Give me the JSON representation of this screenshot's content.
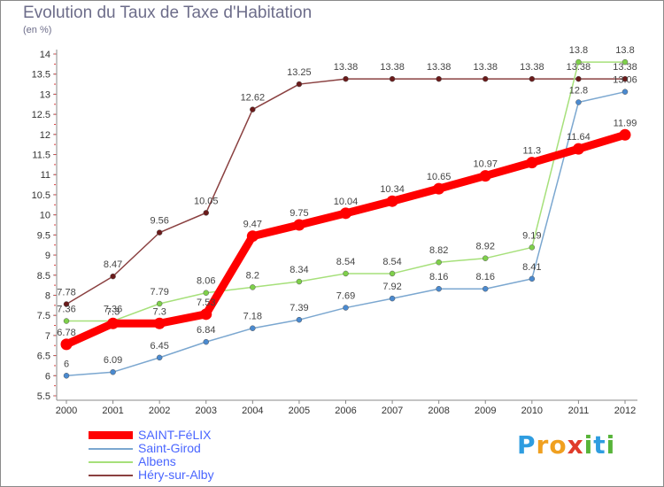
{
  "header": {
    "title": "Evolution du Taux de Taxe d'Habitation",
    "subtitle": "(en %)"
  },
  "brand": {
    "letters": [
      "P",
      "r",
      "o",
      "x",
      "i",
      "t",
      "i"
    ],
    "colors": [
      "#2f9de0",
      "#f0a020",
      "#f0a020",
      "#e03b2a",
      "#58b43a",
      "#2f9de0",
      "#58b43a"
    ]
  },
  "chart_data": {
    "type": "line",
    "title": "Evolution du Taux de Taxe d'Habitation",
    "subtitle": "(en %)",
    "x": [
      "2000",
      "2001",
      "2002",
      "2003",
      "2004",
      "2005",
      "2006",
      "2007",
      "2008",
      "2009",
      "2010",
      "2011",
      "2012"
    ],
    "ylim": [
      5.5,
      14
    ],
    "yticks": [
      "5.5",
      "6",
      "6.5",
      "7",
      "7.5",
      "8",
      "8.5",
      "9",
      "9.5",
      "10",
      "10.5",
      "11",
      "11.5",
      "12",
      "12.5",
      "13",
      "13.5",
      "14"
    ],
    "grid": false,
    "legend": "bottom-left",
    "series": [
      {
        "name": "SAINT-FéLIX",
        "color": "#ff0000",
        "marker": "#ff0000",
        "bold": true,
        "values": [
          6.78,
          7.3,
          7.3,
          7.53,
          9.47,
          9.75,
          10.04,
          10.34,
          10.65,
          10.97,
          11.3,
          11.64,
          11.99
        ],
        "labels": [
          "6.78",
          "7.3",
          "7.3",
          "7.53",
          "9.47",
          "9.75",
          "10.04",
          "10.34",
          "10.65",
          "10.97",
          "11.3",
          "11.64",
          "11.99"
        ]
      },
      {
        "name": "Saint-Girod",
        "color": "#7ba7d0",
        "marker": "#4a8ad0",
        "bold": false,
        "values": [
          6,
          6.09,
          6.45,
          6.84,
          7.18,
          7.39,
          7.69,
          7.92,
          8.16,
          8.16,
          8.41,
          12.8,
          13.06
        ],
        "labels": [
          "6",
          "6.09",
          "6.45",
          "6.84",
          "7.18",
          "7.39",
          "7.69",
          "7.92",
          "8.16",
          "8.16",
          "8.41",
          "12.8",
          "13.06"
        ]
      },
      {
        "name": "Albens",
        "color": "#a6e07a",
        "marker": "#7ed04a",
        "bold": false,
        "values": [
          7.36,
          7.36,
          7.79,
          8.06,
          8.2,
          8.34,
          8.54,
          8.54,
          8.82,
          8.92,
          9.19,
          13.8,
          13.8
        ],
        "labels": [
          "7.36",
          "7.36",
          "7.79",
          "8.06",
          "8.2",
          "8.34",
          "8.54",
          "8.54",
          "8.82",
          "8.92",
          "9.19",
          "13.8",
          "13.8"
        ]
      },
      {
        "name": "Héry-sur-Alby",
        "color": "#8a4040",
        "marker": "#6a1a1a",
        "bold": false,
        "values": [
          7.78,
          8.47,
          9.56,
          10.05,
          12.62,
          13.25,
          13.38,
          13.38,
          13.38,
          13.38,
          13.38,
          13.38,
          13.38
        ],
        "labels": [
          "7.78",
          "8.47",
          "9.56",
          "10.05",
          "12.62",
          "13.25",
          "13.38",
          "13.38",
          "13.38",
          "13.38",
          "13.38",
          "13.38",
          "13.38"
        ]
      }
    ]
  }
}
